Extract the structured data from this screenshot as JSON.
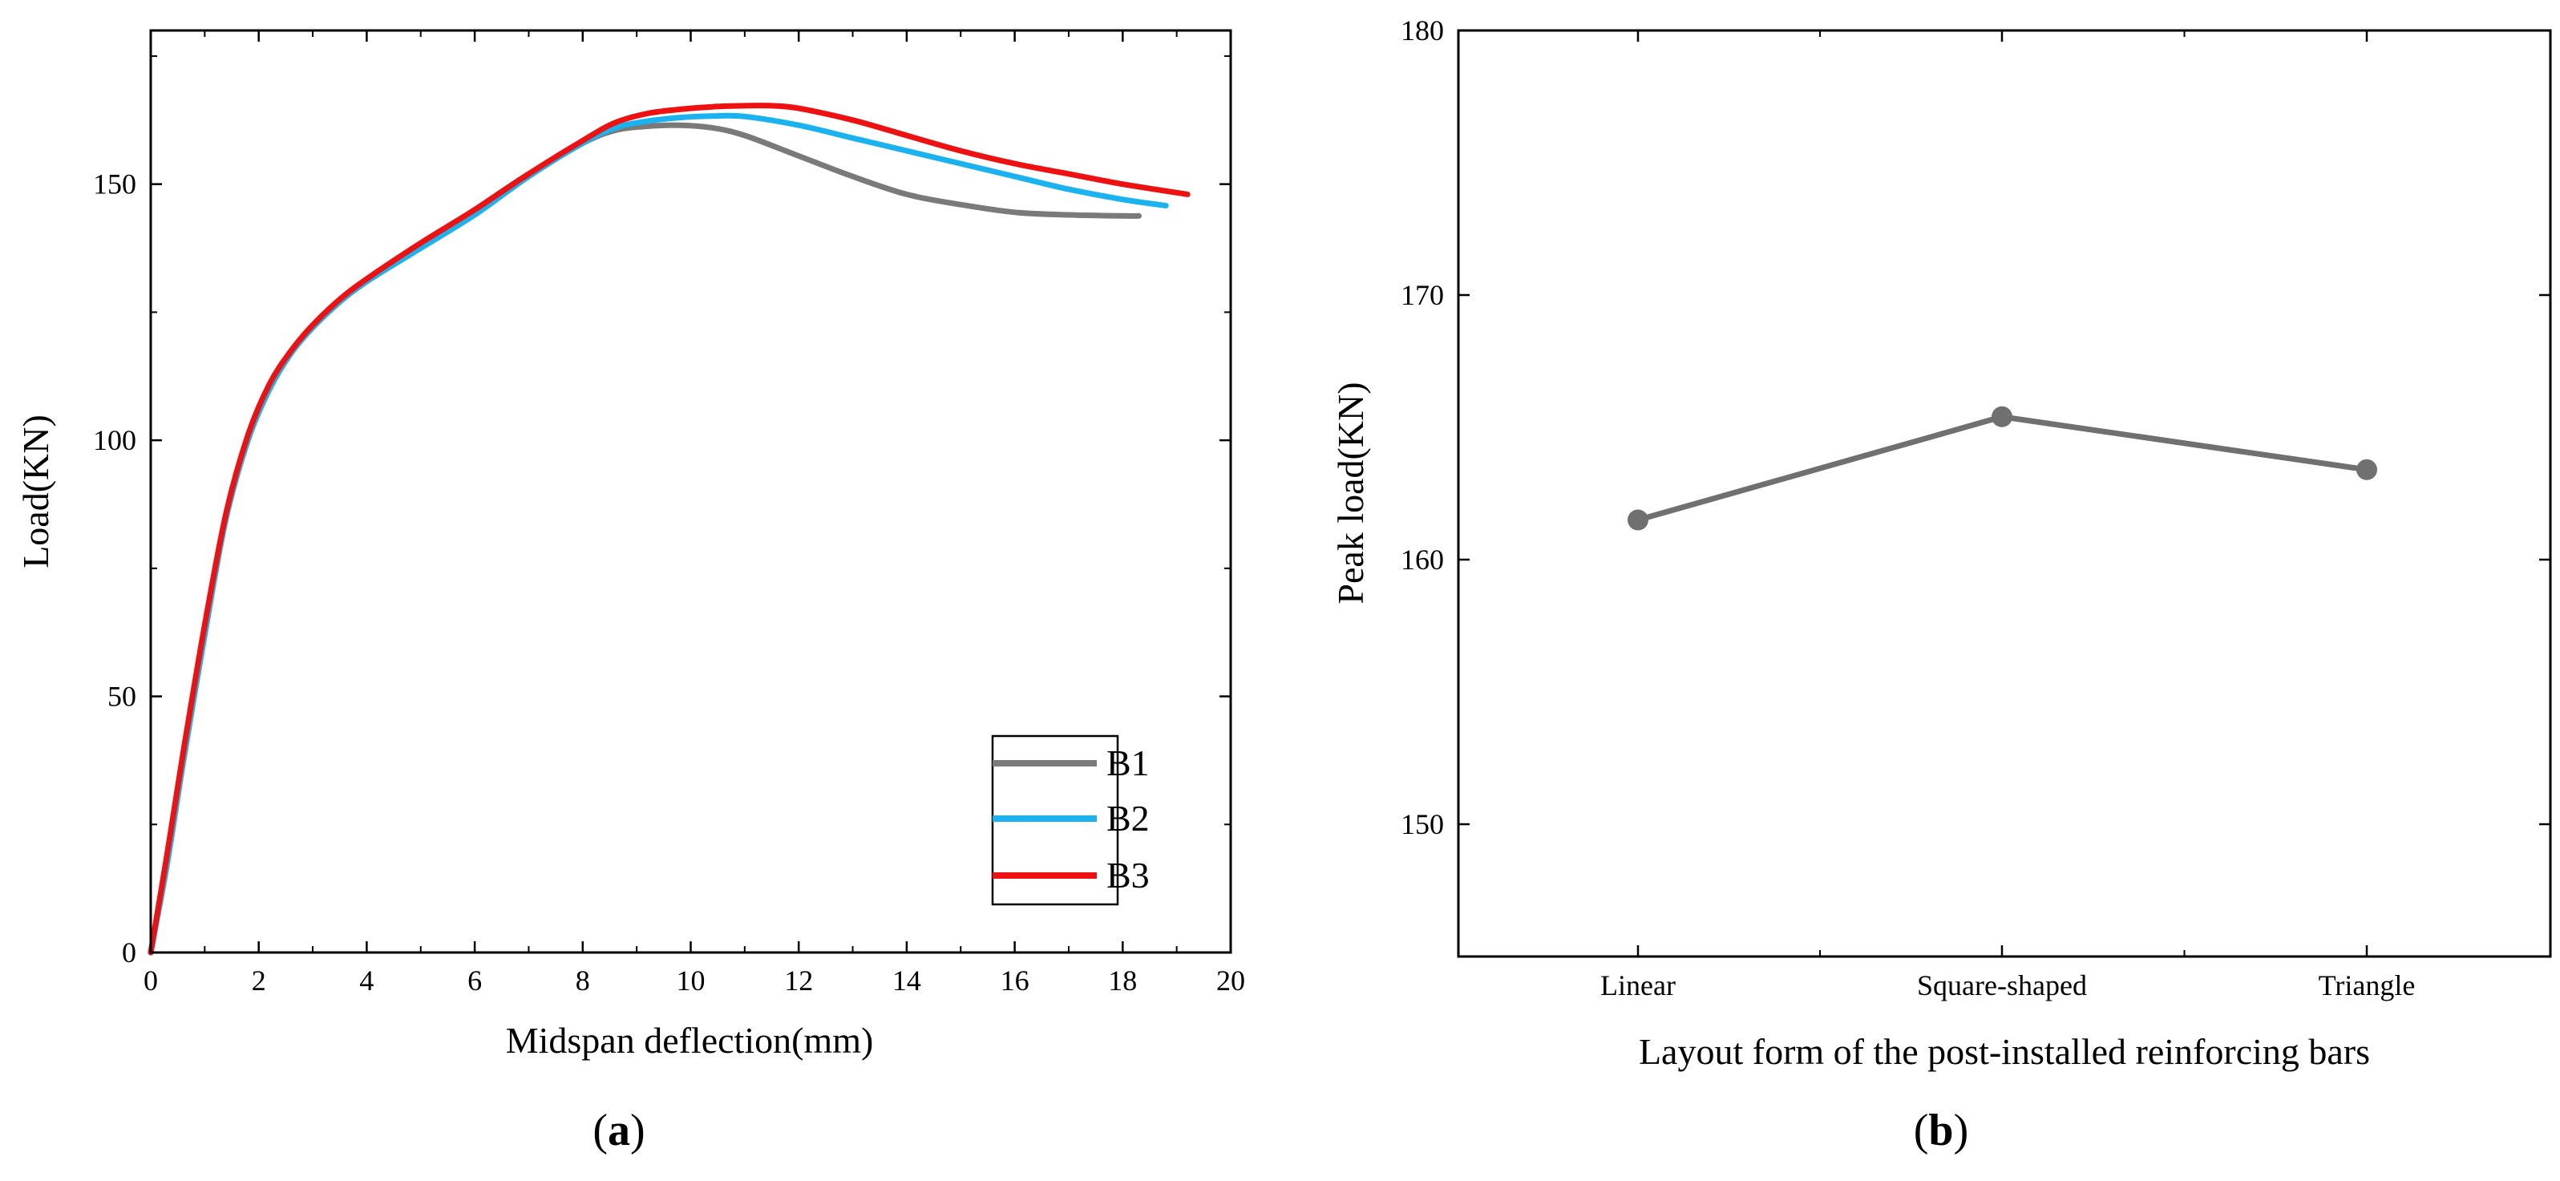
{
  "chart_data": [
    {
      "type": "line",
      "panel": "(a)",
      "panel_open": "(",
      "panel_letter": "a",
      "panel_close": ")",
      "xlabel": "Midspan deflection(mm)",
      "ylabel": "Load(KN)",
      "xlim": [
        0,
        20
      ],
      "ylim": [
        0,
        180
      ],
      "xticks": [
        0,
        2,
        4,
        6,
        8,
        10,
        12,
        14,
        16,
        18,
        20
      ],
      "yticks": [
        0,
        50,
        100,
        150
      ],
      "grid": false,
      "legend_position": "bottom-right",
      "series": [
        {
          "name": "B1",
          "color": "#7a7a7a",
          "x": [
            0,
            0.3,
            0.6,
            1.0,
            1.4,
            1.8,
            2.2,
            2.6,
            3.0,
            3.5,
            4.0,
            5.0,
            6.0,
            7.0,
            8.0,
            8.6,
            9.2,
            9.8,
            10.4,
            11.0,
            12.0,
            13.0,
            14.0,
            15.0,
            16.0,
            17.0,
            18.0,
            18.3
          ],
          "values": [
            0,
            18,
            38,
            63,
            85,
            100,
            110,
            117,
            122,
            127,
            131,
            138,
            145,
            152,
            158,
            160.5,
            161.3,
            161.5,
            161,
            159.5,
            155.5,
            151.5,
            148,
            146,
            144.5,
            144,
            143.8,
            143.8
          ]
        },
        {
          "name": "B2",
          "color": "#1ab3f0",
          "x": [
            0,
            0.3,
            0.6,
            1.0,
            1.4,
            1.8,
            2.2,
            2.6,
            3.0,
            3.5,
            4.0,
            5.0,
            6.0,
            7.0,
            8.0,
            8.6,
            9.2,
            9.8,
            10.4,
            11.0,
            12.0,
            13.0,
            14.0,
            15.0,
            16.0,
            17.0,
            18.0,
            18.8
          ],
          "values": [
            0,
            17,
            37,
            62,
            85,
            100,
            110,
            117,
            122,
            127,
            131,
            137.5,
            144,
            151.5,
            158,
            161,
            162.3,
            163,
            163.3,
            163.2,
            161.5,
            159,
            156.5,
            154,
            151.5,
            149,
            147,
            145.8
          ]
        },
        {
          "name": "B3",
          "color": "#ee1111",
          "x": [
            0,
            0.3,
            0.6,
            1.0,
            1.4,
            1.8,
            2.2,
            2.6,
            3.0,
            3.5,
            4.0,
            5.0,
            6.0,
            7.0,
            8.0,
            8.6,
            9.2,
            9.8,
            10.4,
            11.0,
            11.5,
            12.0,
            13.0,
            14.0,
            15.0,
            16.0,
            17.0,
            18.0,
            19.2
          ],
          "values": [
            0,
            19,
            39,
            64,
            86,
            101,
            111,
            117.5,
            122.5,
            127.5,
            131.5,
            138.5,
            145,
            152,
            158.5,
            162,
            163.8,
            164.6,
            165.1,
            165.3,
            165.3,
            164.8,
            162.5,
            159.5,
            156.5,
            154,
            152,
            150,
            148
          ]
        }
      ]
    },
    {
      "type": "line",
      "panel": "(b)",
      "panel_open": "(",
      "panel_letter": "b",
      "panel_close": ")",
      "xlabel": "Layout form of the post-installed reinforcing bars",
      "ylabel": "Peak load(KN)",
      "categories": [
        "Linear",
        "Square-shaped",
        "Triangle"
      ],
      "ylim": [
        145,
        180
      ],
      "yticks": [
        150,
        160,
        170,
        180
      ],
      "grid": false,
      "series": [
        {
          "name": "Peak load",
          "color": "#707070",
          "values": [
            161.5,
            165.4,
            163.4
          ]
        }
      ]
    }
  ]
}
